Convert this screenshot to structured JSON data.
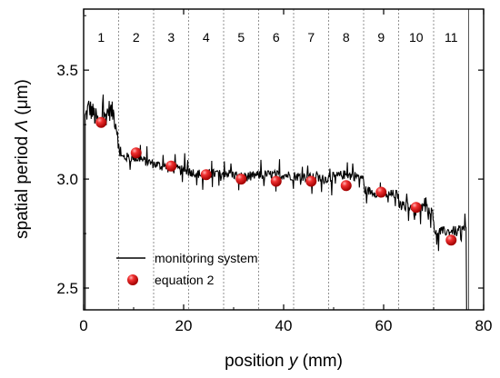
{
  "chart_data": {
    "type": "line",
    "xlabel": "position",
    "xlabel_var": "y",
    "xlabel_unit": " (mm)",
    "ylabel": "spatial period",
    "ylabel_var": "Λ",
    "ylabel_unit": " (μm)",
    "xlim": [
      0,
      80
    ],
    "ylim": [
      2.4,
      3.78
    ],
    "x_ticks": [
      0,
      20,
      40,
      60,
      80
    ],
    "x_tick_labels": [
      "0",
      "20",
      "40",
      "60",
      "80"
    ],
    "y_ticks": [
      2.5,
      3.0,
      3.5
    ],
    "y_tick_labels": [
      "2.5",
      "3.0",
      "3.5"
    ],
    "section_boundaries": [
      0,
      7,
      14,
      21,
      28,
      35,
      42,
      49,
      56,
      63,
      70,
      77
    ],
    "section_labels": [
      "1",
      "2",
      "3",
      "4",
      "5",
      "6",
      "7",
      "8",
      "9",
      "10",
      "11"
    ],
    "legend_position": "lower-left",
    "series": [
      {
        "name": "monitoring system",
        "style": "line",
        "color": "#000000",
        "profile_x": [
          0.3,
          1,
          2,
          3,
          4,
          5,
          6,
          6.8,
          7.2,
          10,
          14,
          17,
          20,
          24,
          28,
          32,
          36,
          40,
          44,
          48,
          52,
          55.8,
          56.2,
          60,
          62.8,
          63.2,
          67,
          69.8,
          70.2,
          73,
          76.6
        ],
        "profile_y": [
          3.28,
          3.33,
          3.3,
          3.25,
          3.27,
          3.32,
          3.3,
          3.22,
          3.1,
          3.1,
          3.07,
          3.05,
          3.04,
          3.02,
          3.03,
          3.01,
          3.02,
          3.02,
          3.01,
          3.0,
          3.02,
          3.01,
          2.95,
          2.93,
          2.93,
          2.88,
          2.87,
          2.86,
          2.76,
          2.76,
          2.77
        ]
      },
      {
        "name": "equation 2",
        "style": "marker",
        "color": "#e8161c",
        "x": [
          3.5,
          10.5,
          17.5,
          24.5,
          31.5,
          38.5,
          45.5,
          52.5,
          59.5,
          66.5,
          73.5
        ],
        "y": [
          3.26,
          3.12,
          3.06,
          3.02,
          3.0,
          2.99,
          2.99,
          2.97,
          2.94,
          2.87,
          2.72
        ]
      }
    ]
  }
}
